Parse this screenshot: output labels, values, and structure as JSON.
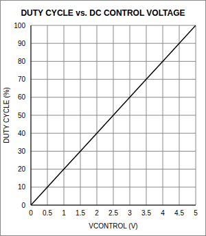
{
  "chart_data": {
    "type": "line",
    "title": "DUTY CYCLE vs. DC CONTROL VOLTAGE",
    "x_label": "VCONTROL (V)",
    "y_label": "DUTY CYCLE (%)",
    "x": [
      0,
      0.5,
      1,
      1.5,
      2,
      2.5,
      3,
      3.5,
      4,
      4.5,
      5
    ],
    "values": [
      0,
      10,
      20,
      30,
      40,
      50,
      60,
      70,
      80,
      90,
      100
    ],
    "xlim": [
      0,
      5
    ],
    "xticks": [
      0,
      0.5,
      1,
      1.5,
      2,
      2.5,
      3,
      3.5,
      4,
      4.5,
      5
    ],
    "ylim": [
      0,
      100
    ],
    "yticks": [
      0,
      10,
      20,
      30,
      40,
      50,
      60,
      70,
      80,
      90,
      100
    ],
    "grid": true,
    "color": "#000000"
  }
}
